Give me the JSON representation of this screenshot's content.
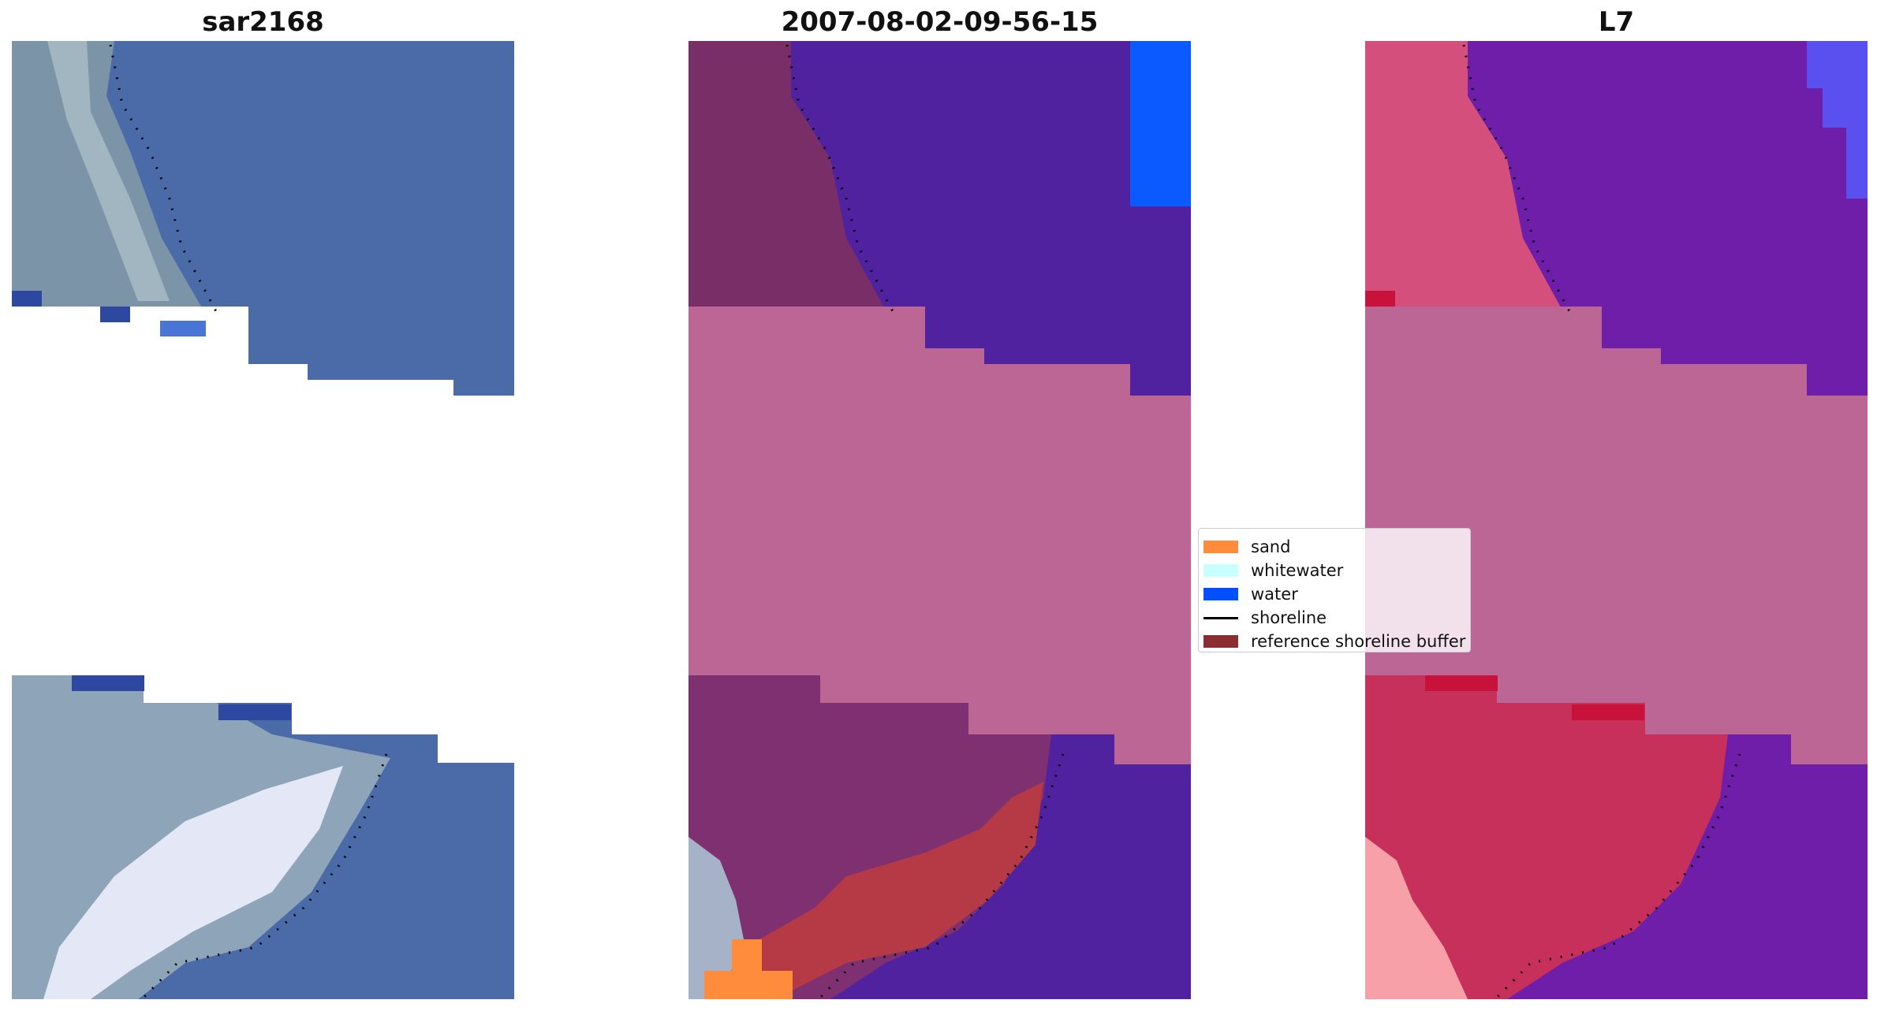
{
  "panels": [
    {
      "title": "sar2168"
    },
    {
      "title": "2007-08-02-09-56-15"
    },
    {
      "title": "L7"
    }
  ],
  "legend": {
    "entries": [
      {
        "label": "sand",
        "color": "#ff8c3c",
        "kind": "patch"
      },
      {
        "label": "whitewater",
        "color": "#c8ffff",
        "kind": "patch"
      },
      {
        "label": "water",
        "color": "#0050ff",
        "kind": "patch"
      },
      {
        "label": "shoreline",
        "color": "#000000",
        "kind": "line"
      },
      {
        "label": "reference shoreline buffer",
        "color": "#8c2d32",
        "kind": "patch"
      }
    ]
  },
  "colors": {
    "buffer_overlay": "#bc6696",
    "water_class": "#5022a0",
    "sea_rgb": "#4a6aa8",
    "l7_water": "#6e1ea8",
    "l7_land": "#d44f7c"
  }
}
